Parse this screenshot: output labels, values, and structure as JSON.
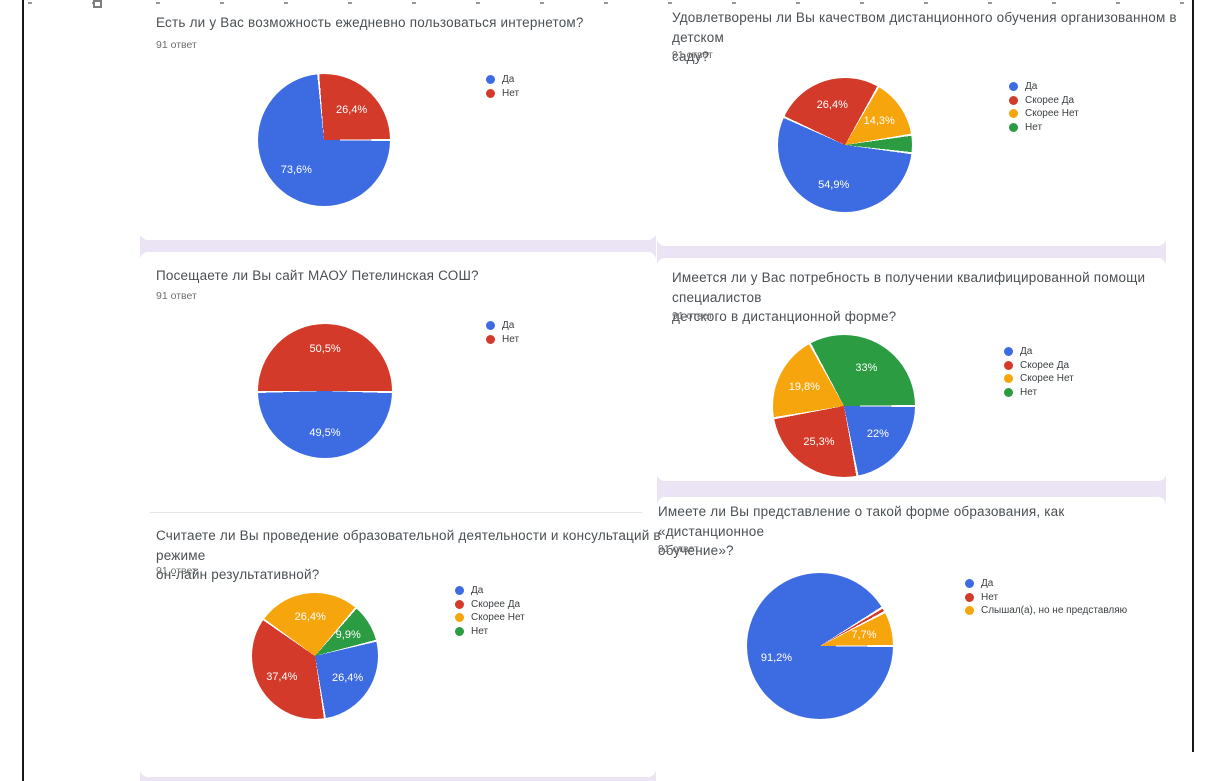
{
  "page": {
    "background": "#ffffff",
    "gap_color": "#ebe4f5"
  },
  "colors": {
    "blue": "#3d6be1",
    "red": "#d33a2a",
    "orange": "#f7a50c",
    "green": "#2b9c41"
  },
  "chart_data": [
    {
      "type": "pie",
      "title_lines": [
        "Есть ли у Вас возможность ежедневно пользоваться интернетом?",
        ""
      ],
      "responses": "91 ответ",
      "legend_position": "right",
      "start_angle": 90,
      "slices": [
        {
          "label": "Да",
          "value": 73.6,
          "display": "73,6%",
          "color": "blue"
        },
        {
          "label": "Нет",
          "value": 26.4,
          "display": "26,4%",
          "color": "red"
        }
      ]
    },
    {
      "type": "pie",
      "title_lines": [
        "Удовлетворены ли Вы качеством дистанционного обучения организованном в детском",
        "саду?"
      ],
      "responses": "91 ответ",
      "legend_position": "right",
      "start_angle": 97,
      "slices": [
        {
          "label": "Да",
          "value": 54.9,
          "display": "54,9%",
          "color": "blue"
        },
        {
          "label": "Скорее Да",
          "value": 26.4,
          "display": "26,4%",
          "color": "red"
        },
        {
          "label": "Скорее Нет",
          "value": 14.3,
          "display": "14,3%",
          "color": "orange"
        },
        {
          "label": "Нет",
          "value": 4.4,
          "display": "",
          "color": "green"
        }
      ]
    },
    {
      "type": "pie",
      "title_lines": [
        "Посещаете ли Вы сайт МАОУ Петелинская СОШ?",
        ""
      ],
      "responses": "91 ответ",
      "legend_position": "right",
      "start_angle": 91,
      "slices": [
        {
          "label": "Да",
          "value": 49.5,
          "display": "49,5%",
          "color": "blue"
        },
        {
          "label": "Нет",
          "value": 50.5,
          "display": "50,5%",
          "color": "red"
        }
      ]
    },
    {
      "type": "pie",
      "title_lines": [
        "Имеется ли у Вас потребность в получении квалифицированной помощи специалистов",
        "детского в дистанционной форме?"
      ],
      "responses": "91 ответ",
      "legend_position": "right",
      "start_angle": 90,
      "slices": [
        {
          "label": "Да",
          "value": 22.0,
          "display": "22%",
          "color": "blue"
        },
        {
          "label": "Скорее Да",
          "value": 25.3,
          "display": "25,3%",
          "color": "red"
        },
        {
          "label": "Скорее Нет",
          "value": 19.8,
          "display": "19,8%",
          "color": "orange"
        },
        {
          "label": "Нет",
          "value": 33.0,
          "display": "33%",
          "color": "green"
        }
      ]
    },
    {
      "type": "pie",
      "title_lines": [
        "Считаете ли Вы проведение образовательной деятельности и консультаций в режиме",
        "он-лайн результативной?"
      ],
      "responses": "91 ответ",
      "legend_position": "right",
      "start_angle": 76,
      "slices": [
        {
          "label": "Да",
          "value": 26.4,
          "display": "26,4%",
          "color": "blue"
        },
        {
          "label": "Скорее Да",
          "value": 37.4,
          "display": "37,4%",
          "color": "red"
        },
        {
          "label": "Скорее Нет",
          "value": 26.4,
          "display": "26,4%",
          "color": "orange"
        },
        {
          "label": "Нет",
          "value": 9.9,
          "display": "9,9%",
          "color": "green"
        }
      ]
    },
    {
      "type": "pie",
      "title_lines": [
        "Имеете ли Вы представление о такой форме образования, как «дистанционное",
        "обучение»?"
      ],
      "responses": "91 ответ",
      "legend_position": "right",
      "start_angle": 90,
      "slices": [
        {
          "label": "Да",
          "value": 91.2,
          "display": "91,2%",
          "color": "blue"
        },
        {
          "label": "Нет",
          "value": 1.1,
          "display": "",
          "color": "red"
        },
        {
          "label": "Слышал(а), но не представляю",
          "value": 7.7,
          "display": "7,7%",
          "color": "orange"
        }
      ]
    }
  ]
}
